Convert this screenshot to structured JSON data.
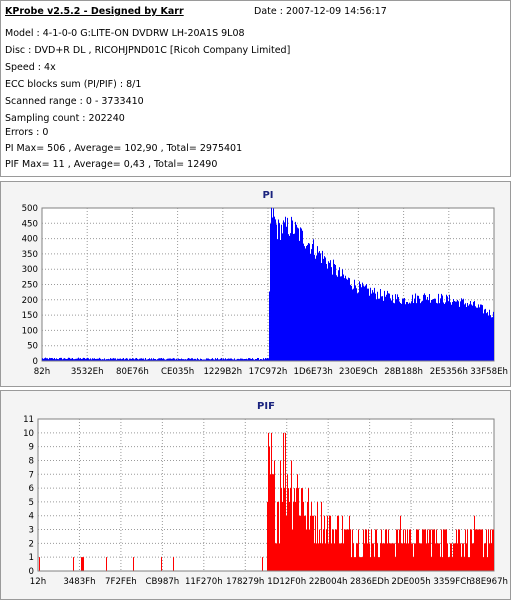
{
  "header": {
    "title": "KProbe v2.5.2 - Designed by Karr",
    "date": "Date : 2007-12-09 14:56:17",
    "lines": [
      "Model : 4-1-0-0 G:LITE-ON DVDRW LH-20A1S   9L08",
      "Disc : DVD+R DL , RICOHJPND01C [Ricoh Company Limited]",
      "Speed : 4x",
      "ECC blocks sum (PI/PIF) : 8/1",
      "Scanned range : 0 - 3733410",
      "Sampling count : 202240",
      "Errors : 0",
      "PI Max= 506 , Average= 102,90 , Total= 2975401",
      "PIF Max= 11 , Average= 0,43 , Total= 12490"
    ]
  },
  "chart_data": [
    {
      "type": "area",
      "title": "PI",
      "ylim": [
        0,
        500
      ],
      "y_ticks": [
        "0",
        "50",
        "100",
        "150",
        "200",
        "250",
        "300",
        "350",
        "400",
        "450",
        "500"
      ],
      "x_ticks": [
        "82h",
        "3532Eh",
        "80E76h",
        "CE035h",
        "1229B2h",
        "17C972h",
        "1D6E73h",
        "230E9Ch",
        "28B188h",
        "2E5356h",
        "33F58Eh"
      ],
      "grid": true,
      "color": "#0000ff",
      "series": [
        {
          "x_fraction": [
            0.0,
            0.1,
            0.2,
            0.3,
            0.4,
            0.49,
            0.5,
            0.505,
            0.52,
            0.55,
            0.58,
            0.62,
            0.66,
            0.7,
            0.75,
            0.8,
            0.85,
            0.9,
            0.95,
            1.0
          ],
          "values": [
            8,
            8,
            7,
            7,
            7,
            7,
            7,
            505,
            430,
            440,
            400,
            340,
            280,
            240,
            215,
            200,
            210,
            200,
            185,
            150
          ]
        }
      ]
    },
    {
      "type": "bar",
      "title": "PIF",
      "ylim": [
        0,
        11
      ],
      "y_ticks": [
        "0",
        "1",
        "2",
        "3",
        "4",
        "5",
        "6",
        "7",
        "8",
        "9",
        "10",
        "11"
      ],
      "x_ticks": [
        "12h",
        "3483Fh",
        "7F2FEh",
        "CB987h",
        "11F270h",
        "178279h",
        "1D12F0h",
        "22B004h",
        "2836EDh",
        "2DE005h",
        "3359FCh",
        "38E967h"
      ],
      "grid": true,
      "color": "#ff0000",
      "series": [
        {
          "x_fraction": [
            0.0,
            0.1,
            0.2,
            0.3,
            0.4,
            0.5,
            0.505,
            0.52,
            0.55,
            0.6,
            0.7,
            0.8,
            0.9,
            1.0
          ],
          "values": [
            0,
            0,
            0,
            1,
            1,
            0,
            11,
            7,
            6,
            3,
            2,
            2,
            2,
            2
          ]
        }
      ]
    }
  ]
}
